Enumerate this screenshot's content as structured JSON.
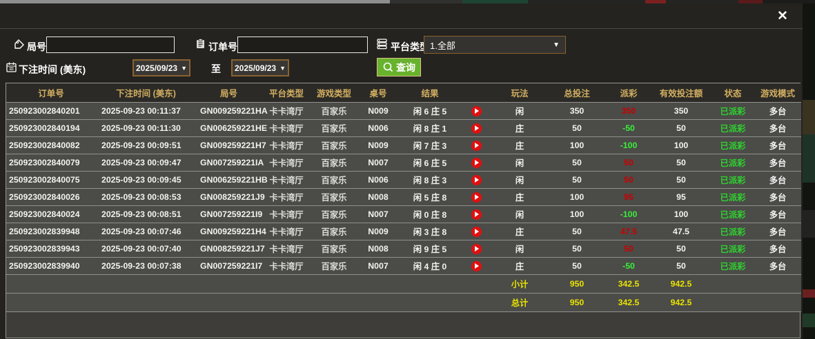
{
  "window": {
    "close_label": "✕"
  },
  "filters": {
    "round_label": "局号",
    "round_value": "",
    "order_label": "订单号",
    "order_value": "",
    "platform_label": "平台类型",
    "platform_value": "1.全部",
    "bet_time_label": "下注时间 (美东)",
    "date_from": "2025/09/23",
    "to_label": "至",
    "date_to": "2025/09/23",
    "query_label": "查询",
    "dropdown_arrow": "▼"
  },
  "table": {
    "columns": [
      "订单号",
      "下注时间 (美东)",
      "局号",
      "平台类型",
      "游戏类型",
      "桌号",
      "结果",
      "",
      "玩法",
      "总投注",
      "派彩",
      "有效投注额",
      "状态",
      "游戏模式"
    ],
    "rows": [
      {
        "order": "250923002840201",
        "time": "2025-09-23 00:11:37",
        "round": "GN009259221HA",
        "platform": "卡卡湾厅",
        "game": "百家乐",
        "table_no": "N009",
        "result": "闲 6 庄 5",
        "play": "闲",
        "total_bet": "350",
        "payout": "350",
        "valid_bet": "350",
        "status": "已派彩",
        "mode": "多台"
      },
      {
        "order": "250923002840194",
        "time": "2025-09-23 00:11:30",
        "round": "GN006259221HE",
        "platform": "卡卡湾厅",
        "game": "百家乐",
        "table_no": "N006",
        "result": "闲 8 庄 1",
        "play": "庄",
        "total_bet": "50",
        "payout": "-50",
        "valid_bet": "50",
        "status": "已派彩",
        "mode": "多台"
      },
      {
        "order": "250923002840082",
        "time": "2025-09-23 00:09:51",
        "round": "GN009259221H7",
        "platform": "卡卡湾厅",
        "game": "百家乐",
        "table_no": "N009",
        "result": "闲 7 庄 3",
        "play": "庄",
        "total_bet": "100",
        "payout": "-100",
        "valid_bet": "100",
        "status": "已派彩",
        "mode": "多台"
      },
      {
        "order": "250923002840079",
        "time": "2025-09-23 00:09:47",
        "round": "GN007259221IA",
        "platform": "卡卡湾厅",
        "game": "百家乐",
        "table_no": "N007",
        "result": "闲 6 庄 5",
        "play": "闲",
        "total_bet": "50",
        "payout": "50",
        "valid_bet": "50",
        "status": "已派彩",
        "mode": "多台"
      },
      {
        "order": "250923002840075",
        "time": "2025-09-23 00:09:45",
        "round": "GN006259221HB",
        "platform": "卡卡湾厅",
        "game": "百家乐",
        "table_no": "N006",
        "result": "闲 8 庄 3",
        "play": "闲",
        "total_bet": "50",
        "payout": "50",
        "valid_bet": "50",
        "status": "已派彩",
        "mode": "多台"
      },
      {
        "order": "250923002840026",
        "time": "2025-09-23 00:08:53",
        "round": "GN008259221J9",
        "platform": "卡卡湾厅",
        "game": "百家乐",
        "table_no": "N008",
        "result": "闲 5 庄 8",
        "play": "庄",
        "total_bet": "100",
        "payout": "95",
        "valid_bet": "95",
        "status": "已派彩",
        "mode": "多台"
      },
      {
        "order": "250923002840024",
        "time": "2025-09-23 00:08:51",
        "round": "GN007259221I9",
        "platform": "卡卡湾厅",
        "game": "百家乐",
        "table_no": "N007",
        "result": "闲 0 庄 8",
        "play": "闲",
        "total_bet": "100",
        "payout": "-100",
        "valid_bet": "100",
        "status": "已派彩",
        "mode": "多台"
      },
      {
        "order": "250923002839948",
        "time": "2025-09-23 00:07:46",
        "round": "GN009259221H4",
        "platform": "卡卡湾厅",
        "game": "百家乐",
        "table_no": "N009",
        "result": "闲 3 庄 8",
        "play": "庄",
        "total_bet": "50",
        "payout": "47.5",
        "valid_bet": "47.5",
        "status": "已派彩",
        "mode": "多台"
      },
      {
        "order": "250923002839943",
        "time": "2025-09-23 00:07:40",
        "round": "GN008259221J7",
        "platform": "卡卡湾厅",
        "game": "百家乐",
        "table_no": "N008",
        "result": "闲 9 庄 5",
        "play": "闲",
        "total_bet": "50",
        "payout": "50",
        "valid_bet": "50",
        "status": "已派彩",
        "mode": "多台"
      },
      {
        "order": "250923002839940",
        "time": "2025-09-23 00:07:38",
        "round": "GN007259221I7",
        "platform": "卡卡湾厅",
        "game": "百家乐",
        "table_no": "N007",
        "result": "闲 4 庄 0",
        "play": "庄",
        "total_bet": "50",
        "payout": "-50",
        "valid_bet": "50",
        "status": "已派彩",
        "mode": "多台"
      }
    ],
    "subtotal": {
      "label": "小计",
      "total_bet": "950",
      "payout": "342.5",
      "valid_bet": "942.5"
    },
    "total": {
      "label": "总计",
      "total_bet": "950",
      "payout": "342.5",
      "valid_bet": "942.5"
    }
  },
  "colors": {
    "accent_gold": "#d3af62",
    "payout_win_red": "#c80000",
    "payout_loss_green": "#3aef3a",
    "status_green": "#2fd12f",
    "summary_yellow": "#e8e300",
    "query_button_green": "#68b22d",
    "picker_border_brown": "#8a6231"
  }
}
